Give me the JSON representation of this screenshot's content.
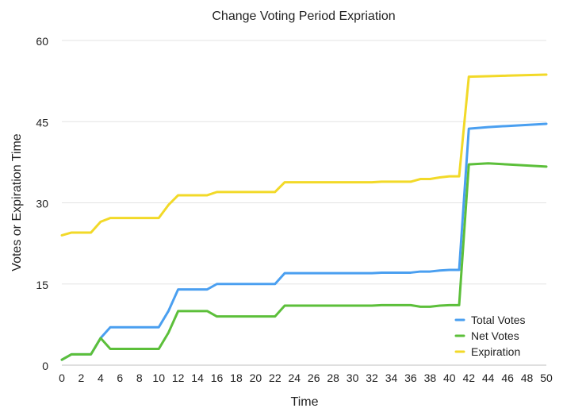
{
  "chart_data": {
    "type": "line",
    "title": "Change Voting Period Expriation",
    "xlabel": "Time",
    "ylabel": "Votes or Expiration Time",
    "xlim": [
      0,
      50
    ],
    "ylim": [
      0,
      60
    ],
    "x_ticks": [
      0,
      2,
      4,
      6,
      8,
      10,
      12,
      14,
      16,
      18,
      20,
      22,
      24,
      26,
      28,
      30,
      32,
      34,
      36,
      38,
      40,
      42,
      44,
      46,
      48,
      50
    ],
    "y_ticks": [
      0,
      15,
      30,
      45,
      60
    ],
    "grid": "horizontal",
    "legend_position": "bottom-right",
    "series": [
      {
        "name": "Total Votes",
        "color": "#4a9ff0",
        "points": [
          [
            0,
            1
          ],
          [
            1,
            2
          ],
          [
            2,
            2
          ],
          [
            3,
            2
          ],
          [
            4,
            5
          ],
          [
            5,
            7
          ],
          [
            6,
            7
          ],
          [
            7,
            7
          ],
          [
            8,
            7
          ],
          [
            9,
            7
          ],
          [
            10,
            7
          ],
          [
            11,
            10
          ],
          [
            12,
            14
          ],
          [
            13,
            14
          ],
          [
            14,
            14
          ],
          [
            15,
            14
          ],
          [
            16,
            15
          ],
          [
            17,
            15
          ],
          [
            18,
            15
          ],
          [
            19,
            15
          ],
          [
            20,
            15
          ],
          [
            21,
            15
          ],
          [
            22,
            15
          ],
          [
            23,
            17
          ],
          [
            24,
            17
          ],
          [
            25,
            17
          ],
          [
            26,
            17
          ],
          [
            27,
            17
          ],
          [
            28,
            17
          ],
          [
            29,
            17
          ],
          [
            30,
            17
          ],
          [
            31,
            17
          ],
          [
            32,
            17
          ],
          [
            33,
            17.1
          ],
          [
            34,
            17.1
          ],
          [
            35,
            17.1
          ],
          [
            36,
            17.1
          ],
          [
            37,
            17.3
          ],
          [
            38,
            17.3
          ],
          [
            39,
            17.5
          ],
          [
            40,
            17.6
          ],
          [
            41,
            17.6
          ],
          [
            42,
            43.7
          ],
          [
            44,
            44
          ],
          [
            46,
            44.2
          ],
          [
            48,
            44.4
          ],
          [
            50,
            44.6
          ]
        ]
      },
      {
        "name": "Net Votes",
        "color": "#5cbf3a",
        "points": [
          [
            0,
            1
          ],
          [
            1,
            2
          ],
          [
            2,
            2
          ],
          [
            3,
            2
          ],
          [
            4,
            5
          ],
          [
            5,
            3
          ],
          [
            6,
            3
          ],
          [
            7,
            3
          ],
          [
            8,
            3
          ],
          [
            9,
            3
          ],
          [
            10,
            3
          ],
          [
            11,
            6
          ],
          [
            12,
            10
          ],
          [
            13,
            10
          ],
          [
            14,
            10
          ],
          [
            15,
            10
          ],
          [
            16,
            9
          ],
          [
            17,
            9
          ],
          [
            18,
            9
          ],
          [
            19,
            9
          ],
          [
            20,
            9
          ],
          [
            21,
            9
          ],
          [
            22,
            9
          ],
          [
            23,
            11
          ],
          [
            24,
            11
          ],
          [
            25,
            11
          ],
          [
            26,
            11
          ],
          [
            27,
            11
          ],
          [
            28,
            11
          ],
          [
            29,
            11
          ],
          [
            30,
            11
          ],
          [
            31,
            11
          ],
          [
            32,
            11
          ],
          [
            33,
            11.1
          ],
          [
            34,
            11.1
          ],
          [
            35,
            11.1
          ],
          [
            36,
            11.1
          ],
          [
            37,
            10.8
          ],
          [
            38,
            10.8
          ],
          [
            39,
            11
          ],
          [
            40,
            11.1
          ],
          [
            41,
            11.1
          ],
          [
            42,
            37.1
          ],
          [
            44,
            37.3
          ],
          [
            46,
            37.1
          ],
          [
            48,
            36.9
          ],
          [
            50,
            36.7
          ]
        ]
      },
      {
        "name": "Expiration",
        "color": "#f2d928",
        "points": [
          [
            0,
            24
          ],
          [
            1,
            24.5
          ],
          [
            2,
            24.5
          ],
          [
            3,
            24.5
          ],
          [
            4,
            26.5
          ],
          [
            5,
            27.2
          ],
          [
            6,
            27.2
          ],
          [
            7,
            27.2
          ],
          [
            8,
            27.2
          ],
          [
            9,
            27.2
          ],
          [
            10,
            27.2
          ],
          [
            11,
            29.6
          ],
          [
            12,
            31.4
          ],
          [
            13,
            31.4
          ],
          [
            14,
            31.4
          ],
          [
            15,
            31.4
          ],
          [
            16,
            32
          ],
          [
            17,
            32
          ],
          [
            18,
            32
          ],
          [
            19,
            32
          ],
          [
            20,
            32
          ],
          [
            21,
            32
          ],
          [
            22,
            32
          ],
          [
            23,
            33.8
          ],
          [
            24,
            33.8
          ],
          [
            25,
            33.8
          ],
          [
            26,
            33.8
          ],
          [
            27,
            33.8
          ],
          [
            28,
            33.8
          ],
          [
            29,
            33.8
          ],
          [
            30,
            33.8
          ],
          [
            31,
            33.8
          ],
          [
            32,
            33.8
          ],
          [
            33,
            33.9
          ],
          [
            34,
            33.9
          ],
          [
            35,
            33.9
          ],
          [
            36,
            33.9
          ],
          [
            37,
            34.4
          ],
          [
            38,
            34.4
          ],
          [
            39,
            34.7
          ],
          [
            40,
            34.9
          ],
          [
            41,
            34.9
          ],
          [
            42,
            53.3
          ],
          [
            44,
            53.4
          ],
          [
            46,
            53.5
          ],
          [
            48,
            53.6
          ],
          [
            50,
            53.7
          ]
        ]
      }
    ]
  }
}
